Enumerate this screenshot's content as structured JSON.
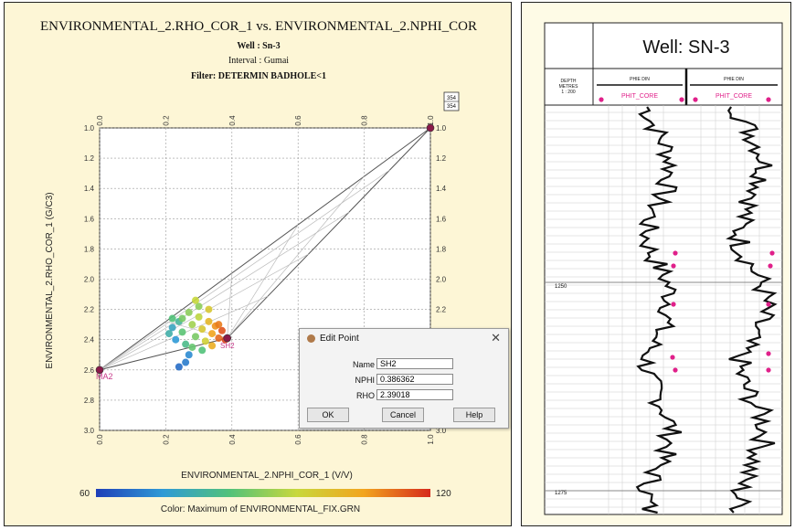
{
  "left_panel": {
    "title": "ENVIRONMENTAL_2.RHO_COR_1 vs. ENVIRONMENTAL_2.NPHI_COR",
    "well_line": "Well : Sn-3",
    "interval_line": "Interval : Gumai",
    "filter_line": "Filter: DETERMIN BADHOLE<1",
    "corner_badge_top": "354",
    "corner_badge_bottom": "354",
    "xlabel": "ENVIRONMENTAL_2.NPHI_COR_1 (V/V)",
    "ylabel": "ENVIRONMENTAL_2.RHO_COR_1 (G/C3)",
    "colorbar_min": "60",
    "colorbar_max": "120",
    "colorbar_label": "Color: Maximum of ENVIRONMENTAL_FIX.GRN",
    "point_labels": {
      "ma2": "MA2",
      "sh2": "SH2"
    }
  },
  "edit_point_dialog": {
    "title": "Edit Point",
    "close": "✕",
    "name_label": "Name",
    "name_value": "SH2",
    "nphi_label": "NPHI",
    "nphi_value": "0.386362",
    "rho_label": "RHO",
    "rho_value": "2.39018",
    "ok_label": "OK",
    "cancel_label": "Cancel",
    "help_label": "Help"
  },
  "right_panel": {
    "title": "Well: SN-3",
    "depth_header": [
      "DEPTH",
      "METRES",
      "1 : 200"
    ],
    "track1_header": "PHIE DIN",
    "track1_sub": "PHIT_CORE",
    "track2_header": "PHIE DIN",
    "track2_sub": "PHIT_CORE",
    "depth_labels": [
      "1250",
      "1275"
    ],
    "core_color": "#e0208a"
  },
  "chart_data": {
    "type": "scatter",
    "title": "ENVIRONMENTAL_2.RHO_COR_1 vs. ENVIRONMENTAL_2.NPHI_COR",
    "xlabel": "ENVIRONMENTAL_2.NPHI_COR_1 (V/V)",
    "ylabel": "ENVIRONMENTAL_2.RHO_COR_1 (G/C3)",
    "xlim": [
      0,
      1
    ],
    "ylim": [
      1.0,
      3.0
    ],
    "y_inverted": true,
    "x_ticks": [
      "0.0",
      "0.2",
      "0.4",
      "0.6",
      "0.8",
      "1.0"
    ],
    "y_ticks": [
      "1.0",
      "1.2",
      "1.4",
      "1.6",
      "1.8",
      "2.0",
      "2.2",
      "2.4",
      "2.6",
      "2.8",
      "3.0"
    ],
    "grid": true,
    "endpoints": [
      {
        "name": "MA2",
        "x": 0.0,
        "y": 2.6
      },
      {
        "name": "SH2",
        "x": 0.386,
        "y": 2.39
      },
      {
        "name": "",
        "x": 1.0,
        "y": 1.0
      }
    ],
    "cluster": [
      {
        "x": 0.22,
        "y": 2.32,
        "c": 75
      },
      {
        "x": 0.24,
        "y": 2.28,
        "c": 80
      },
      {
        "x": 0.25,
        "y": 2.35,
        "c": 85
      },
      {
        "x": 0.27,
        "y": 2.22,
        "c": 90
      },
      {
        "x": 0.28,
        "y": 2.3,
        "c": 92
      },
      {
        "x": 0.29,
        "y": 2.38,
        "c": 88
      },
      {
        "x": 0.3,
        "y": 2.25,
        "c": 95
      },
      {
        "x": 0.31,
        "y": 2.33,
        "c": 100
      },
      {
        "x": 0.32,
        "y": 2.41,
        "c": 98
      },
      {
        "x": 0.33,
        "y": 2.28,
        "c": 104
      },
      {
        "x": 0.34,
        "y": 2.36,
        "c": 108
      },
      {
        "x": 0.35,
        "y": 2.31,
        "c": 110
      },
      {
        "x": 0.36,
        "y": 2.39,
        "c": 114
      },
      {
        "x": 0.37,
        "y": 2.34,
        "c": 116
      },
      {
        "x": 0.38,
        "y": 2.4,
        "c": 118
      },
      {
        "x": 0.26,
        "y": 2.43,
        "c": 82
      },
      {
        "x": 0.23,
        "y": 2.4,
        "c": 72
      },
      {
        "x": 0.28,
        "y": 2.45,
        "c": 86
      },
      {
        "x": 0.3,
        "y": 2.18,
        "c": 90
      },
      {
        "x": 0.29,
        "y": 2.14,
        "c": 96
      },
      {
        "x": 0.33,
        "y": 2.2,
        "c": 100
      },
      {
        "x": 0.21,
        "y": 2.36,
        "c": 78
      },
      {
        "x": 0.27,
        "y": 2.5,
        "c": 70
      },
      {
        "x": 0.31,
        "y": 2.47,
        "c": 84
      },
      {
        "x": 0.34,
        "y": 2.44,
        "c": 106
      },
      {
        "x": 0.36,
        "y": 2.3,
        "c": 112
      },
      {
        "x": 0.25,
        "y": 2.26,
        "c": 88
      },
      {
        "x": 0.24,
        "y": 2.58,
        "c": 66
      },
      {
        "x": 0.26,
        "y": 2.55,
        "c": 68
      },
      {
        "x": 0.22,
        "y": 2.26,
        "c": 84
      }
    ],
    "colorbar": {
      "min": 60,
      "max": 120,
      "label": "Color: Maximum of ENVIRONMENTAL_FIX.GRN"
    }
  }
}
